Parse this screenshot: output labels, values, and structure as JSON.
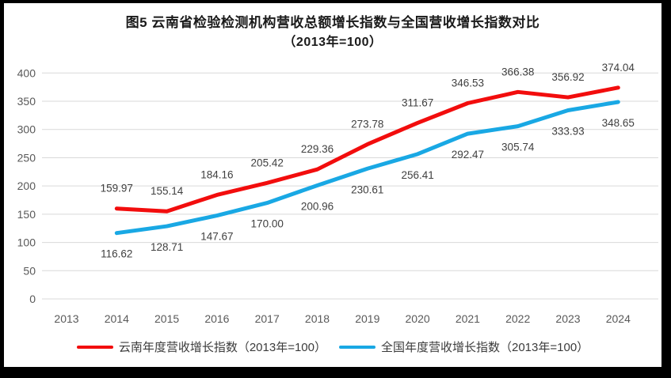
{
  "figure": {
    "title_line1": "图5  云南省检验检测机构营收总额增长指数与全国营收增长指数对比",
    "title_line2": "（2013年=100）"
  },
  "colors": {
    "gridline": "#d9d9d9",
    "axis_text": "#595959",
    "data_label_text": "#404040",
    "title_text": "#1a1a1a",
    "frame": "#000000",
    "background": "#ffffff"
  },
  "chart_data": {
    "type": "line",
    "title": "图5 云南省检验检测机构营收总额增长指数与全国营收增长指数对比（2013年=100）",
    "categories": [
      "2013",
      "2014",
      "2015",
      "2016",
      "2017",
      "2018",
      "2019",
      "2020",
      "2021",
      "2022",
      "2023",
      "2024"
    ],
    "xlabel": "",
    "ylabel": "",
    "ylim": [
      0,
      400
    ],
    "yticks": [
      0,
      50,
      100,
      150,
      200,
      250,
      300,
      350,
      400
    ],
    "grid": "horizontal",
    "legend_position": "bottom",
    "series": [
      {
        "name": "云南年度营收增长指数（2013年=100）",
        "color": "#f20d0d",
        "label_position": "above",
        "values": [
          null,
          159.97,
          155.14,
          184.16,
          205.42,
          229.36,
          273.78,
          311.67,
          346.53,
          366.38,
          356.92,
          374.04
        ],
        "labels": [
          "",
          "159.97",
          "155.14",
          "184.16",
          "205.42",
          "229.36",
          "273.78",
          "311.67",
          "346.53",
          "366.38",
          "356.92",
          "374.04"
        ]
      },
      {
        "name": "全国年度营收增长指数（2013年=100）",
        "color": "#19a8e4",
        "label_position": "below",
        "values": [
          null,
          116.62,
          128.71,
          147.67,
          170.0,
          200.96,
          230.61,
          256.41,
          292.47,
          305.74,
          333.93,
          348.65
        ],
        "labels": [
          "",
          "116.62",
          "128.71",
          "147.67",
          "170.00",
          "200.96",
          "230.61",
          "256.41",
          "292.47",
          "305.74",
          "333.93",
          "348.65"
        ]
      }
    ]
  }
}
